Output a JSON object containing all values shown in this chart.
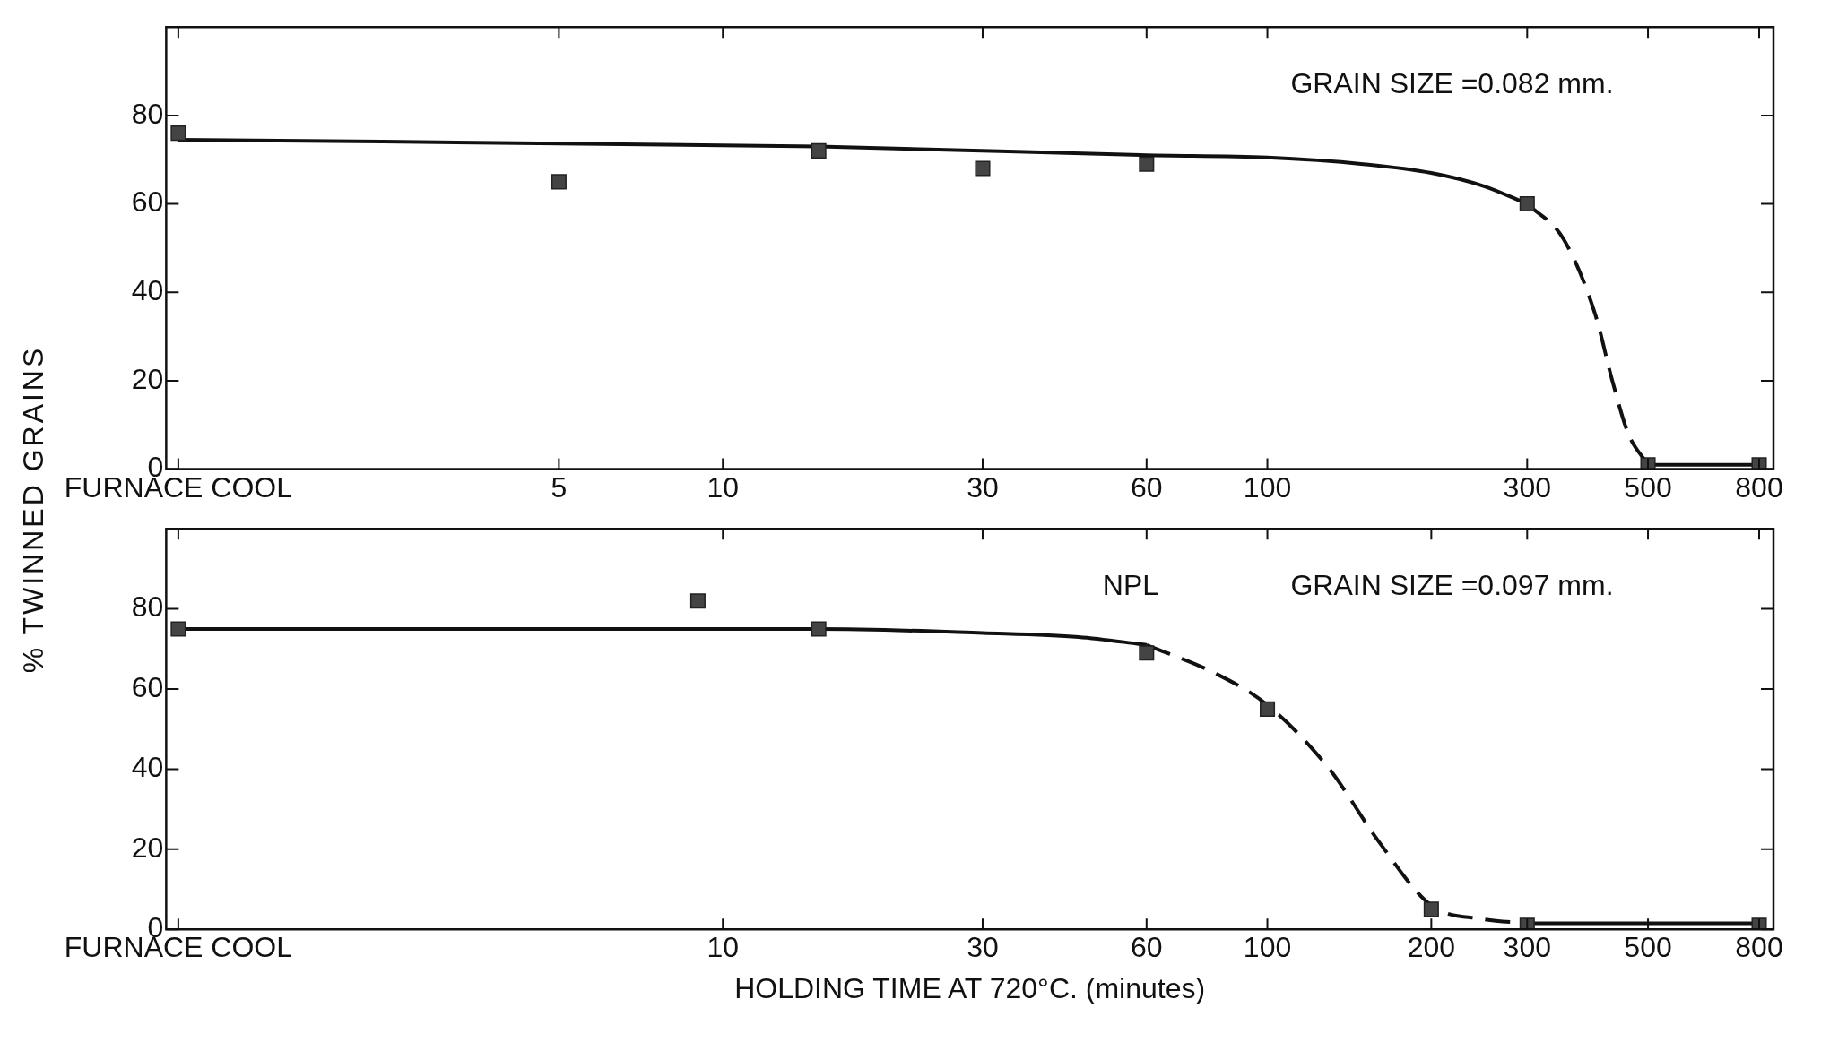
{
  "chart_data": [
    {
      "type": "scatter",
      "ylabel": "% TWINNED GRAINS",
      "annotations": [
        "GRAIN SIZE =0.082 mm."
      ],
      "marker": "square",
      "grid": false,
      "legend": false,
      "log": "x",
      "xlim": [
        0.95,
        850
      ],
      "ylim": [
        0,
        100
      ],
      "xticks": [
        {
          "value": 1,
          "label": "FURNACE COOL"
        },
        5,
        10,
        30,
        60,
        100,
        300,
        500,
        800
      ],
      "yticks": [
        0,
        20,
        40,
        60,
        80
      ],
      "series": [
        {
          "type": "scatter",
          "color": "#444444",
          "x": [
            1,
            5,
            15,
            30,
            60,
            300,
            500,
            800
          ],
          "values": [
            76,
            65,
            72,
            68,
            69,
            60,
            1,
            1
          ]
        },
        {
          "type": "line",
          "color": "#111111",
          "line_style": "solid",
          "marker": "none",
          "x": [
            1,
            15,
            60,
            100,
            150,
            200,
            250,
            300
          ],
          "values": [
            74.5,
            73,
            71,
            70.5,
            69,
            67,
            64,
            60
          ]
        },
        {
          "type": "line",
          "color": "#111111",
          "line_style": "dashed",
          "marker": "none",
          "x": [
            300,
            350,
            400,
            430,
            460,
            500
          ],
          "values": [
            60,
            52,
            35,
            20,
            8,
            1
          ]
        },
        {
          "type": "line",
          "color": "#111111",
          "line_style": "solid",
          "marker": "none",
          "x": [
            500,
            800
          ],
          "values": [
            1,
            1
          ]
        }
      ]
    },
    {
      "type": "scatter",
      "xlabel": "HOLDING TIME AT 720°C. (minutes)",
      "annotations": [
        "NPL",
        "GRAIN SIZE =0.097 mm."
      ],
      "marker": "square",
      "grid": false,
      "legend": false,
      "log": "x",
      "xlim": [
        0.95,
        850
      ],
      "ylim": [
        0,
        100
      ],
      "xticks": [
        {
          "value": 1,
          "label": "FURNACE COOL"
        },
        10,
        30,
        60,
        100,
        200,
        300,
        500,
        800
      ],
      "yticks": [
        0,
        20,
        40,
        60,
        80
      ],
      "series": [
        {
          "type": "scatter",
          "color": "#444444",
          "x": [
            1,
            9,
            15,
            60,
            100,
            200,
            300,
            800
          ],
          "values": [
            75,
            82,
            75,
            69,
            55,
            5,
            1,
            1
          ]
        },
        {
          "type": "line",
          "color": "#111111",
          "line_style": "solid",
          "marker": "none",
          "x": [
            1,
            15,
            30,
            45,
            60
          ],
          "values": [
            75,
            75,
            74,
            73,
            71
          ]
        },
        {
          "type": "line",
          "color": "#111111",
          "line_style": "dashed",
          "marker": "none",
          "x": [
            60,
            80,
            100,
            130,
            160,
            200,
            250,
            300
          ],
          "values": [
            71,
            64,
            56,
            40,
            22,
            6,
            2.5,
            1.5
          ]
        },
        {
          "type": "line",
          "color": "#111111",
          "line_style": "solid",
          "marker": "none",
          "x": [
            300,
            800
          ],
          "values": [
            1.5,
            1.5
          ]
        }
      ]
    }
  ]
}
